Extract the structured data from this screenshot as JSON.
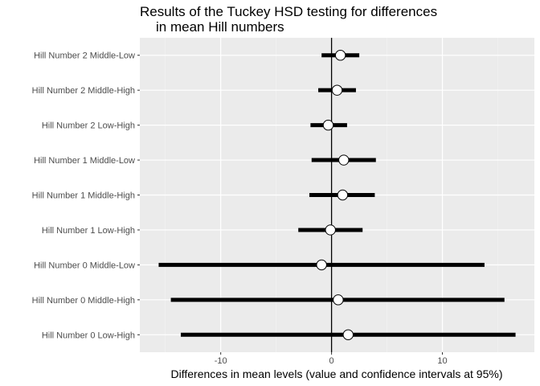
{
  "chart_data": {
    "type": "errorbar",
    "title_lines": [
      "Results of the Tuckey HSD testing for differences",
      "in mean Hill numbers"
    ],
    "xlabel": "Differences in mean levels (value and confidence intervals at 95%)",
    "ylabel": "",
    "xlim": [
      -17.3,
      18.3
    ],
    "x_ticks": [
      -10,
      0,
      10
    ],
    "x_tick_labels": [
      "-10",
      "0",
      "10"
    ],
    "reference_line_x": 0,
    "grid": true,
    "categories": [
      "Hill Number 2 Middle-Low",
      "Hill Number 2 Middle-High",
      "Hill Number 2 Low-High",
      "Hill Number 1 Middle-Low",
      "Hill Number 1 Middle-High",
      "Hill Number 1 Low-High",
      "Hill Number 0 Middle-Low",
      "Hill Number 0 Middle-High",
      "Hill Number 0 Low-High"
    ],
    "estimates": [
      0.8,
      0.5,
      -0.3,
      1.1,
      1.0,
      -0.1,
      -0.9,
      0.6,
      1.5
    ],
    "lower": [
      -0.9,
      -1.2,
      -1.9,
      -1.8,
      -2.0,
      -3.0,
      -15.6,
      -14.5,
      -13.6
    ],
    "upper": [
      2.5,
      2.2,
      1.4,
      4.0,
      3.9,
      2.8,
      13.8,
      15.6,
      16.6
    ],
    "colors": {
      "panel_background": "#ebebeb",
      "major_grid": "#ffffff",
      "minor_grid": "#f4f4f4",
      "interval_line": "#000000",
      "reference_line": "#000000",
      "point_fill": "#ffffff",
      "point_stroke": "#000000",
      "tick_label": "#4d4d4d",
      "title": "#000000"
    }
  }
}
